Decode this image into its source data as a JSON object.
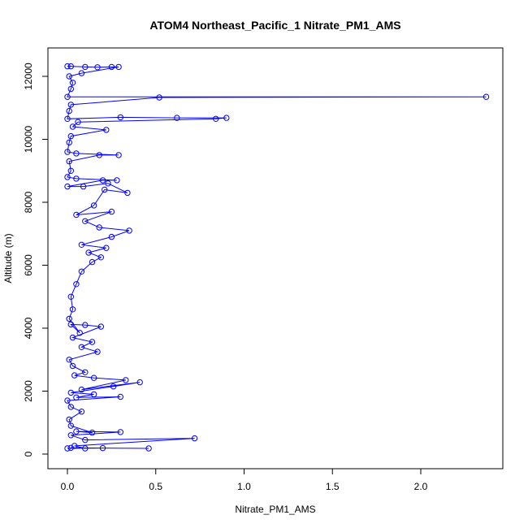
{
  "chart_data": {
    "type": "line",
    "title": "ATOM4 Northeast_Pacific_1 Nitrate_PM1_AMS",
    "xlabel": "Nitrate_PM1_AMS",
    "ylabel": "Altitude (m)",
    "xlim": [
      0,
      2.4
    ],
    "ylim": [
      0,
      12400
    ],
    "xticks": [
      0.0,
      0.5,
      1.0,
      1.5,
      2.0
    ],
    "xtick_labels": [
      "0.0",
      "0.5",
      "1.0",
      "1.5",
      "2.0"
    ],
    "yticks": [
      0,
      2000,
      4000,
      6000,
      8000,
      10000,
      12000
    ],
    "ytick_labels": [
      "0",
      "2000",
      "4000",
      "6000",
      "8000",
      "10000",
      "12000"
    ],
    "grid": false,
    "legend": "none",
    "marker": "open-circle",
    "color": "#0000ff",
    "series": [
      {
        "points": [
          [
            0.0,
            180
          ],
          [
            0.2,
            190
          ],
          [
            0.46,
            180
          ],
          [
            0.02,
            200
          ],
          [
            0.1,
            180
          ],
          [
            0.04,
            260
          ],
          [
            0.72,
            500
          ],
          [
            0.1,
            450
          ],
          [
            0.02,
            600
          ],
          [
            0.3,
            700
          ],
          [
            0.05,
            720
          ],
          [
            0.14,
            680
          ],
          [
            0.02,
            900
          ],
          [
            0.01,
            1100
          ],
          [
            0.08,
            1350
          ],
          [
            0.02,
            1500
          ],
          [
            0.0,
            1700
          ],
          [
            0.3,
            1820
          ],
          [
            0.05,
            1800
          ],
          [
            0.15,
            1900
          ],
          [
            0.02,
            1950
          ],
          [
            0.26,
            2150
          ],
          [
            0.41,
            2280
          ],
          [
            0.08,
            2050
          ],
          [
            0.33,
            2350
          ],
          [
            0.15,
            2420
          ],
          [
            0.04,
            2500
          ],
          [
            0.1,
            2600
          ],
          [
            0.03,
            2800
          ],
          [
            0.01,
            3000
          ],
          [
            0.17,
            3250
          ],
          [
            0.08,
            3400
          ],
          [
            0.14,
            3560
          ],
          [
            0.03,
            3700
          ],
          [
            0.19,
            4050
          ],
          [
            0.1,
            4100
          ],
          [
            0.02,
            4120
          ],
          [
            0.07,
            3850
          ],
          [
            0.01,
            4300
          ],
          [
            0.03,
            4600
          ],
          [
            0.02,
            5000
          ],
          [
            0.05,
            5400
          ],
          [
            0.08,
            5800
          ],
          [
            0.14,
            6100
          ],
          [
            0.19,
            6250
          ],
          [
            0.12,
            6400
          ],
          [
            0.22,
            6550
          ],
          [
            0.08,
            6650
          ],
          [
            0.25,
            6900
          ],
          [
            0.35,
            7100
          ],
          [
            0.18,
            7200
          ],
          [
            0.1,
            7400
          ],
          [
            0.25,
            7700
          ],
          [
            0.05,
            7600
          ],
          [
            0.15,
            7900
          ],
          [
            0.21,
            8400
          ],
          [
            0.34,
            8300
          ],
          [
            0.23,
            8600
          ],
          [
            0.09,
            8500
          ],
          [
            0.0,
            8500
          ],
          [
            0.2,
            8700
          ],
          [
            0.28,
            8700
          ],
          [
            0.05,
            8750
          ],
          [
            0.0,
            8800
          ],
          [
            0.02,
            9000
          ],
          [
            0.01,
            9300
          ],
          [
            0.18,
            9500
          ],
          [
            0.29,
            9500
          ],
          [
            0.05,
            9550
          ],
          [
            0.0,
            9600
          ],
          [
            0.01,
            9900
          ],
          [
            0.02,
            10100
          ],
          [
            0.22,
            10300
          ],
          [
            0.03,
            10400
          ],
          [
            0.06,
            10550
          ],
          [
            0.84,
            10650
          ],
          [
            0.9,
            10680
          ],
          [
            0.62,
            10680
          ],
          [
            0.3,
            10700
          ],
          [
            0.0,
            10650
          ],
          [
            0.01,
            10900
          ],
          [
            0.02,
            11100
          ],
          [
            0.52,
            11330
          ],
          [
            2.37,
            11350
          ],
          [
            0.0,
            11350
          ],
          [
            0.02,
            11600
          ],
          [
            0.03,
            11800
          ],
          [
            0.01,
            12000
          ],
          [
            0.08,
            12100
          ],
          [
            0.29,
            12300
          ],
          [
            0.25,
            12300
          ],
          [
            0.17,
            12290
          ],
          [
            0.1,
            12300
          ],
          [
            0.02,
            12320
          ],
          [
            0.0,
            12320
          ]
        ]
      }
    ]
  }
}
